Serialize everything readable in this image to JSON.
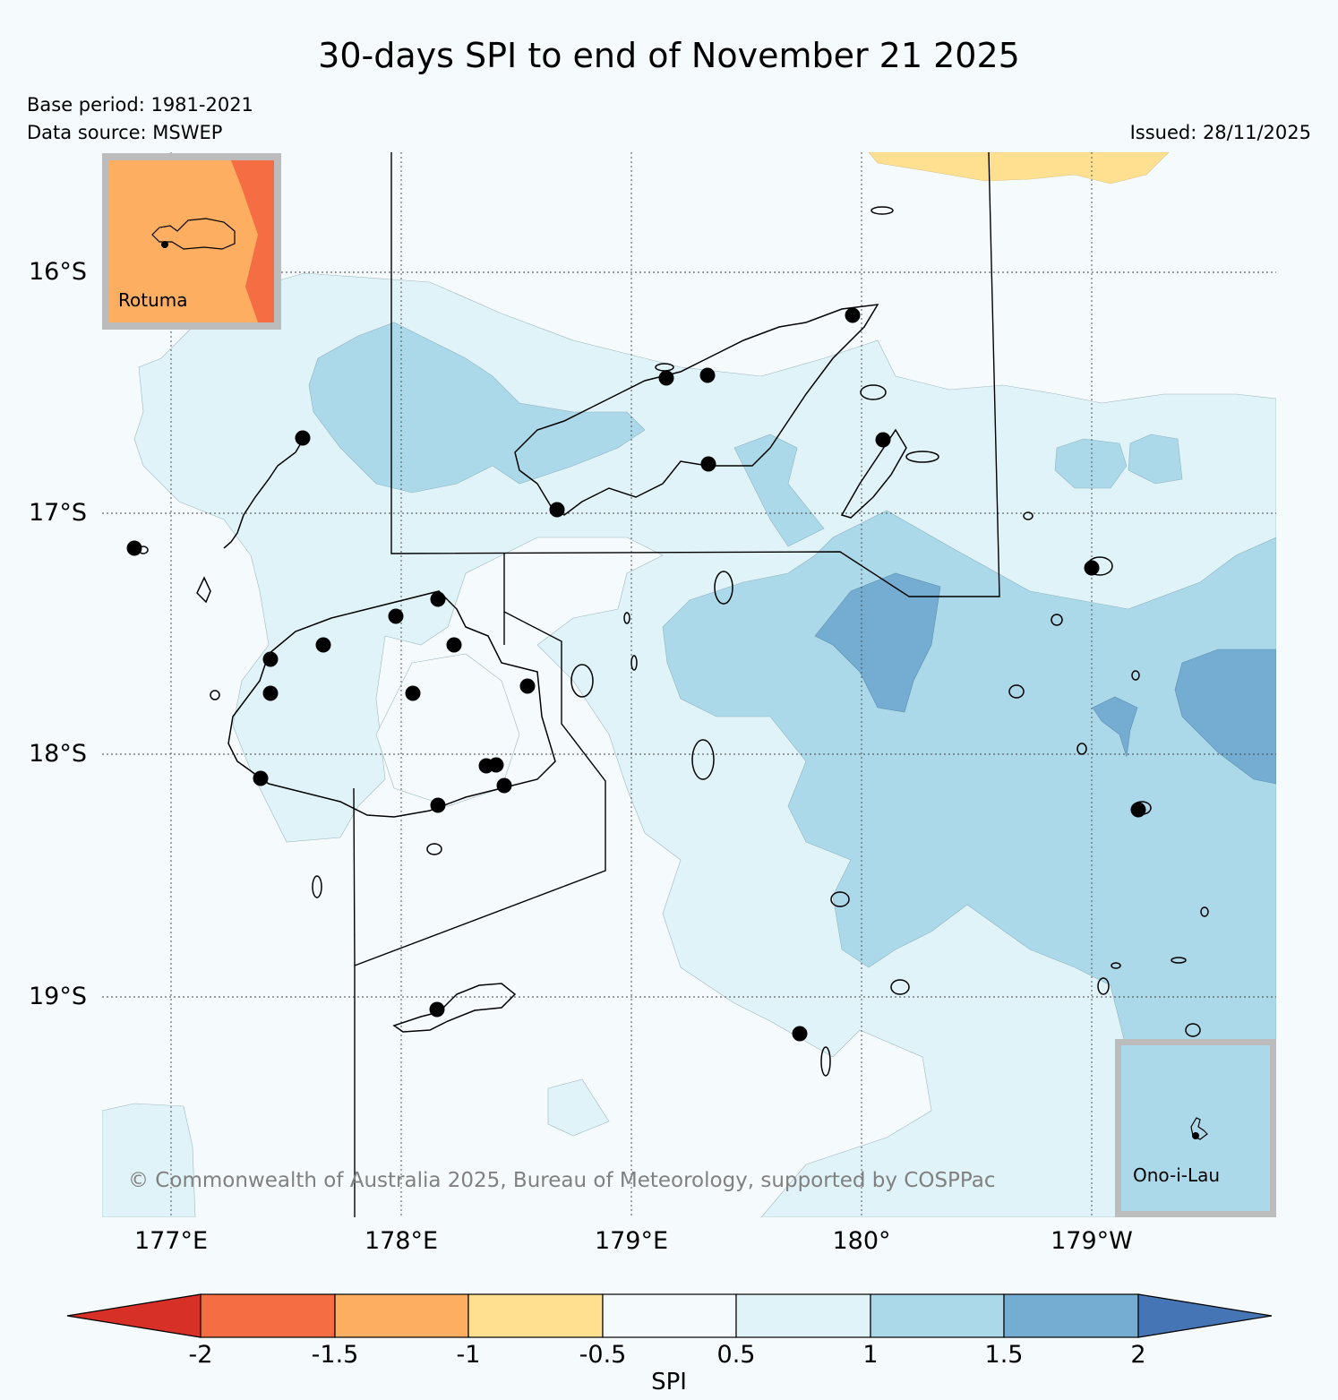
{
  "title": "30-days SPI to end of November 21 2025",
  "base_period": "Base period: 1981-2021",
  "data_source": "Data source: MSWEP",
  "issued": "Issued: 28/11/2025",
  "copyright": "© Commonwealth of Australia 2025, Bureau of Meteorology, supported by COSPPac",
  "lat_labels": [
    "16°S",
    "17°S",
    "18°S",
    "19°S"
  ],
  "lon_labels": [
    "177°E",
    "178°E",
    "179°E",
    "180°",
    "179°W"
  ],
  "insets": {
    "rotuma": "Rotuma",
    "ono": "Ono-i-Lau"
  },
  "colorbar": {
    "label": "SPI",
    "ticks": [
      "-2",
      "-1.5",
      "-1",
      "-0.5",
      "0.5",
      "1",
      "1.5",
      "2"
    ],
    "colors": {
      "below_-2": "#d73027",
      "-2_-1.5": "#f46d43",
      "-1.5_-1": "#fdae61",
      "-1_-0.5": "#fee090",
      "-0.5_0.5": "#f5fbfd",
      "0.5_1": "#e0f3f8",
      "1_1.5": "#abd9e9",
      "1.5_2": "#74add1",
      "above_2": "#4575b4"
    }
  }
}
